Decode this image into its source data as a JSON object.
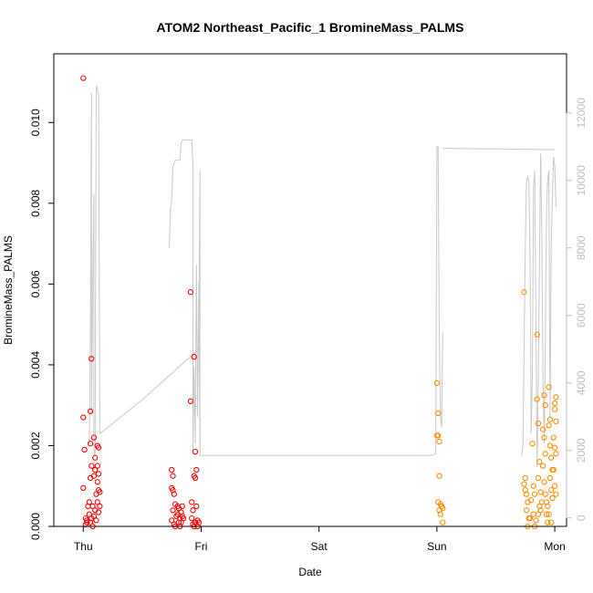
{
  "chart_data": {
    "type": "scatter",
    "title": "ATOM2 Northeast_Pacific_1 BromineMass_PALMS",
    "xlabel": "Date",
    "ylabel": "BromineMass_PALMS",
    "x_ticks": [
      "Thu",
      "Fri",
      "Sat",
      "Sun",
      "Mon"
    ],
    "x_range_days": [
      -0.25,
      4.1
    ],
    "ylim": [
      0,
      0.0117
    ],
    "y_ticks": [
      "0.000",
      "0.002",
      "0.004",
      "0.006",
      "0.008",
      "0.010"
    ],
    "y_tick_values": [
      0,
      0.002,
      0.004,
      0.006,
      0.008,
      0.01
    ],
    "y2lim": [
      -250,
      13750
    ],
    "y2_ticks": [
      "0",
      "2000",
      "4000",
      "6000",
      "8000",
      "10000",
      "12000"
    ],
    "y2_tick_values": [
      0,
      2000,
      4000,
      6000,
      8000,
      10000,
      12000
    ],
    "colors": {
      "red": "#ff0000",
      "orange": "#ff8c00",
      "altitude": "#c8c8c8",
      "axis": "#000000",
      "right_axis": "#bebebe"
    },
    "series": [
      {
        "color": "red",
        "points": [
          [
            0.0,
            0.0111
          ],
          [
            0.0,
            0.0027
          ],
          [
            0.01,
            0.0019
          ],
          [
            0.0,
            0.00095
          ],
          [
            0.02,
            0.0002
          ],
          [
            0.03,
            0.0001
          ],
          [
            0.02,
            5e-05
          ],
          [
            0.04,
            0.0005
          ],
          [
            0.05,
            0.0006
          ],
          [
            0.03,
            0.00015
          ],
          [
            0.06,
            0.00285
          ],
          [
            0.07,
            0.00415
          ],
          [
            0.06,
            0.00205
          ],
          [
            0.07,
            0.0015
          ],
          [
            0.06,
            0.0012
          ],
          [
            0.05,
            0.0003
          ],
          [
            0.08,
            0.0005
          ],
          [
            0.07,
            0.0002
          ],
          [
            0.08,
            0.0
          ],
          [
            0.06,
            0.0001
          ],
          [
            0.09,
            0.0022
          ],
          [
            0.1,
            0.0017
          ],
          [
            0.1,
            0.0014
          ],
          [
            0.09,
            0.00125
          ],
          [
            0.1,
            0.0004
          ],
          [
            0.09,
            0.00025
          ],
          [
            0.11,
            0.00015
          ],
          [
            0.12,
            0.002
          ],
          [
            0.13,
            0.00195
          ],
          [
            0.12,
            0.0015
          ],
          [
            0.13,
            0.0013
          ],
          [
            0.12,
            0.0011
          ],
          [
            0.13,
            0.0009
          ],
          [
            0.12,
            0.0006
          ],
          [
            0.14,
            0.0005
          ],
          [
            0.13,
            0.00035
          ],
          [
            0.14,
            0.00085
          ],
          [
            0.11,
            0.0008
          ],
          [
            0.75,
            0.0014
          ],
          [
            0.76,
            0.00125
          ],
          [
            0.75,
            0.00095
          ],
          [
            0.76,
            0.0009
          ],
          [
            0.77,
            0.0008
          ],
          [
            0.76,
            0.0004
          ],
          [
            0.78,
            0.00055
          ],
          [
            0.75,
            0.00015
          ],
          [
            0.77,
            5e-05
          ],
          [
            0.78,
            0.0
          ],
          [
            0.79,
            0.00025
          ],
          [
            0.8,
            0.0005
          ],
          [
            0.81,
            0.00045
          ],
          [
            0.8,
            0.0003
          ],
          [
            0.82,
            0.0002
          ],
          [
            0.83,
            0.00035
          ],
          [
            0.84,
            0.00025
          ],
          [
            0.81,
            0.0001
          ],
          [
            0.82,
            0.0
          ],
          [
            0.83,
            0.0001
          ],
          [
            0.85,
            0.0002
          ],
          [
            0.84,
            0.0005
          ],
          [
            0.91,
            0.0058
          ],
          [
            0.91,
            0.0031
          ],
          [
            0.92,
            0.0006
          ],
          [
            0.93,
            0.0004
          ],
          [
            0.92,
            0.0002
          ],
          [
            0.93,
            5e-05
          ],
          [
            0.94,
            0.0
          ],
          [
            0.95,
            0.0001
          ],
          [
            0.94,
            0.0042
          ],
          [
            0.95,
            0.00185
          ],
          [
            0.96,
            0.0014
          ],
          [
            0.94,
            0.00125
          ],
          [
            0.95,
            0.0012
          ],
          [
            0.96,
            0.0005
          ],
          [
            0.95,
            0.0001
          ],
          [
            0.97,
            0.00015
          ],
          [
            0.98,
            0.0001
          ],
          [
            0.97,
            0.0
          ]
        ]
      },
      {
        "color": "orange",
        "points": [
          [
            3.0,
            0.00355
          ],
          [
            3.01,
            0.0028
          ],
          [
            3.0,
            0.00225
          ],
          [
            3.02,
            0.0021
          ],
          [
            3.01,
            0.00225
          ],
          [
            3.02,
            0.00125
          ],
          [
            3.01,
            0.0006
          ],
          [
            3.03,
            0.00055
          ],
          [
            3.04,
            0.0005
          ],
          [
            3.02,
            0.0004
          ],
          [
            3.03,
            0.0003
          ],
          [
            3.05,
            0.00045
          ],
          [
            3.05,
            0.0001
          ],
          [
            3.74,
            0.0058
          ],
          [
            3.75,
            0.0012
          ],
          [
            3.74,
            0.00105
          ],
          [
            3.75,
            0.0009
          ],
          [
            3.76,
            0.0008
          ],
          [
            3.77,
            0.0006
          ],
          [
            3.76,
            0.0004
          ],
          [
            3.78,
            0.0002
          ],
          [
            3.77,
            0.0
          ],
          [
            3.79,
            0.0002
          ],
          [
            3.8,
            0.00065
          ],
          [
            3.81,
            0.00205
          ],
          [
            3.82,
            0.001
          ],
          [
            3.83,
            0.0008
          ],
          [
            3.82,
            0.0003
          ],
          [
            3.84,
            0.00015
          ],
          [
            3.83,
            0.0
          ],
          [
            3.85,
            0.00475
          ],
          [
            3.86,
            0.00255
          ],
          [
            3.85,
            0.00315
          ],
          [
            3.87,
            0.0016
          ],
          [
            3.86,
            0.0012
          ],
          [
            3.88,
            0.00085
          ],
          [
            3.87,
            0.0005
          ],
          [
            3.89,
            0.0006
          ],
          [
            3.88,
            0.0004
          ],
          [
            3.86,
            0.0003
          ],
          [
            3.9,
            0.0024
          ],
          [
            3.91,
            0.00325
          ],
          [
            3.92,
            0.003
          ],
          [
            3.91,
            0.0022
          ],
          [
            3.92,
            0.0018
          ],
          [
            3.9,
            0.0015
          ],
          [
            3.91,
            0.0011
          ],
          [
            3.92,
            0.0008
          ],
          [
            3.93,
            0.0006
          ],
          [
            3.94,
            0.0005
          ],
          [
            3.93,
            0.0003
          ],
          [
            3.94,
            0.0001
          ],
          [
            3.95,
            0.00345
          ],
          [
            3.96,
            0.00265
          ],
          [
            3.95,
            0.0025
          ],
          [
            3.96,
            0.002
          ],
          [
            3.97,
            0.0017
          ],
          [
            3.98,
            0.0014
          ],
          [
            3.96,
            0.0012
          ],
          [
            3.97,
            0.0009
          ],
          [
            3.98,
            0.0007
          ],
          [
            3.95,
            0.0003
          ],
          [
            3.97,
            0.0001
          ],
          [
            4.0,
            0.00305
          ],
          [
            4.01,
            0.0032
          ],
          [
            4.0,
            0.0029
          ],
          [
            4.01,
            0.0026
          ],
          [
            3.99,
            0.0022
          ],
          [
            4.0,
            0.00195
          ],
          [
            4.01,
            0.0018
          ],
          [
            3.99,
            0.0014
          ],
          [
            4.0,
            0.001
          ],
          [
            4.01,
            0.0008
          ]
        ]
      }
    ],
    "altitude_segments": [
      [
        [
          0.05,
          2150
        ],
        [
          0.06,
          5500
        ],
        [
          0.07,
          12600
        ],
        [
          0.07,
          3000
        ],
        [
          0.08,
          6800
        ],
        [
          0.09,
          9600
        ],
        [
          0.09,
          2000
        ],
        [
          0.1,
          1850
        ],
        [
          0.11,
          12800
        ],
        [
          0.12,
          12700
        ],
        [
          0.13,
          12500
        ],
        [
          0.14,
          2500
        ],
        [
          0.5,
          3500
        ],
        [
          0.98,
          5000
        ],
        [
          0.99,
          10300
        ],
        [
          0.99,
          1850
        ],
        [
          1.5,
          1850
        ],
        [
          2.0,
          1850
        ],
        [
          2.5,
          1850
        ],
        [
          2.95,
          1850
        ],
        [
          2.99,
          1900
        ],
        [
          3.0,
          11000
        ],
        [
          3.01,
          11000
        ],
        [
          3.02,
          5500
        ],
        [
          3.03,
          3000
        ],
        [
          3.04,
          2700
        ],
        [
          3.05,
          5500
        ]
      ],
      [
        [
          0.73,
          8000
        ],
        [
          0.74,
          9200
        ],
        [
          0.75,
          9400
        ],
        [
          0.76,
          10400
        ],
        [
          0.78,
          10600
        ],
        [
          0.82,
          10600
        ],
        [
          0.83,
          11100
        ],
        [
          0.84,
          11200
        ],
        [
          0.92,
          11200
        ],
        [
          0.93,
          10500
        ],
        [
          0.93,
          9600
        ],
        [
          0.93,
          1900
        ],
        [
          0.94,
          4500
        ],
        [
          0.95,
          2200
        ],
        [
          0.96,
          7500
        ],
        [
          0.97,
          3000
        ],
        [
          0.98,
          7000
        ],
        [
          0.99,
          2200
        ]
      ],
      [
        [
          3.05,
          10950
        ],
        [
          3.3,
          10940
        ],
        [
          3.55,
          10930
        ],
        [
          3.8,
          10920
        ],
        [
          4.0,
          10910
        ]
      ],
      [
        [
          3.72,
          1850
        ],
        [
          3.73,
          2200
        ],
        [
          3.75,
          8000
        ],
        [
          3.76,
          10000
        ],
        [
          3.77,
          10100
        ],
        [
          3.78,
          10000
        ],
        [
          3.79,
          8000
        ],
        [
          3.8,
          2500
        ],
        [
          3.81,
          4200
        ],
        [
          3.82,
          9800
        ],
        [
          3.83,
          10300
        ],
        [
          3.84,
          6000
        ],
        [
          3.85,
          1500
        ],
        [
          3.86,
          4000
        ],
        [
          3.87,
          7500
        ],
        [
          3.88,
          10800
        ],
        [
          3.89,
          8500
        ],
        [
          3.9,
          4000
        ],
        [
          3.91,
          2200
        ],
        [
          3.92,
          5000
        ],
        [
          3.93,
          9000
        ],
        [
          3.94,
          10000
        ],
        [
          3.95,
          10300
        ],
        [
          3.96,
          3000
        ],
        [
          3.97,
          8000
        ],
        [
          3.98,
          9500
        ],
        [
          3.99,
          10700
        ],
        [
          4.0,
          10400
        ],
        [
          4.01,
          9200
        ]
      ]
    ]
  }
}
